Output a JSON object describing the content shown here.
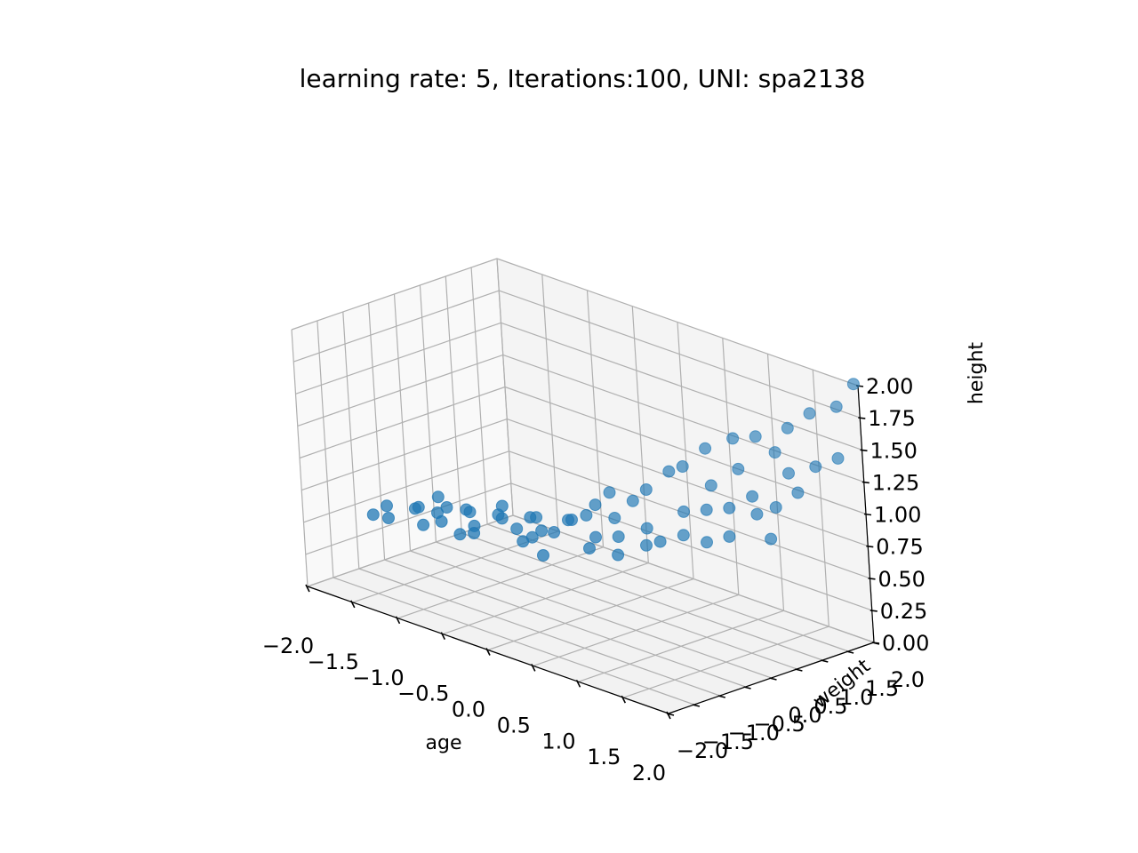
{
  "chart_data": {
    "type": "scatter",
    "projection": "3d",
    "title": "learning rate: 5, Iterations:100, UNI: spa2138",
    "xlabel": "age",
    "ylabel": "weight",
    "zlabel": "height",
    "xlim": [
      -2.0,
      2.0
    ],
    "ylim": [
      -2.0,
      2.0
    ],
    "zlim": [
      0.0,
      2.0
    ],
    "grid": true,
    "marker_color": "#1f77b4",
    "x_ticks": [
      "−2.0",
      "−1.5",
      "−1.0",
      "−0.5",
      "0.0",
      "0.5",
      "1.0",
      "1.5",
      "2.0"
    ],
    "y_ticks": [
      "−2.0",
      "−1.5",
      "−1.0",
      "−0.5",
      "0.0",
      "0.5",
      "1.0",
      "1.5",
      "2.0"
    ],
    "z_ticks": [
      "0.00",
      "0.25",
      "0.50",
      "0.75",
      "1.00",
      "1.25",
      "1.50",
      "1.75",
      "2.00"
    ],
    "points": [
      {
        "x": -1.8,
        "y": -1.0,
        "z": 0.47
      },
      {
        "x": -1.7,
        "y": -0.9,
        "z": 0.55
      },
      {
        "x": -1.6,
        "y": -1.05,
        "z": 0.5
      },
      {
        "x": -1.5,
        "y": -0.7,
        "z": 0.55
      },
      {
        "x": -1.4,
        "y": -0.8,
        "z": 0.6
      },
      {
        "x": -1.35,
        "y": -0.5,
        "z": 0.65
      },
      {
        "x": -1.3,
        "y": -0.9,
        "z": 0.5
      },
      {
        "x": -1.25,
        "y": -0.7,
        "z": 0.58
      },
      {
        "x": -1.2,
        "y": -0.6,
        "z": 0.62
      },
      {
        "x": -1.15,
        "y": -0.8,
        "z": 0.55
      },
      {
        "x": -1.1,
        "y": -0.4,
        "z": 0.6
      },
      {
        "x": -1.0,
        "y": -0.5,
        "z": 0.62
      },
      {
        "x": -0.95,
        "y": -0.8,
        "z": 0.5
      },
      {
        "x": -0.9,
        "y": -0.6,
        "z": 0.55
      },
      {
        "x": -0.85,
        "y": -0.7,
        "z": 0.52
      },
      {
        "x": -0.8,
        "y": -0.3,
        "z": 0.62
      },
      {
        "x": -0.75,
        "y": -0.3,
        "z": 0.7
      },
      {
        "x": -0.7,
        "y": -0.4,
        "z": 0.63
      },
      {
        "x": -0.6,
        "y": -0.3,
        "z": 0.56
      },
      {
        "x": -0.55,
        "y": 0.0,
        "z": 0.62
      },
      {
        "x": -0.5,
        "y": -0.2,
        "z": 0.66
      },
      {
        "x": -0.45,
        "y": -0.45,
        "z": 0.52
      },
      {
        "x": -0.4,
        "y": -0.35,
        "z": 0.55
      },
      {
        "x": -0.35,
        "y": -0.25,
        "z": 0.6
      },
      {
        "x": -0.3,
        "y": -0.1,
        "z": 0.58
      },
      {
        "x": -0.25,
        "y": 0.1,
        "z": 0.66
      },
      {
        "x": -0.2,
        "y": -0.5,
        "z": 0.48
      },
      {
        "x": -0.15,
        "y": 0.0,
        "z": 0.7
      },
      {
        "x": -0.1,
        "y": 0.2,
        "z": 0.72
      },
      {
        "x": -0.05,
        "y": 0.3,
        "z": 0.8
      },
      {
        "x": 0.0,
        "y": 0.5,
        "z": 0.88
      },
      {
        "x": 0.05,
        "y": 0.1,
        "z": 0.6
      },
      {
        "x": 0.1,
        "y": 0.4,
        "z": 0.72
      },
      {
        "x": 0.15,
        "y": -0.2,
        "z": 0.58
      },
      {
        "x": 0.2,
        "y": 0.6,
        "z": 0.85
      },
      {
        "x": 0.25,
        "y": 0.2,
        "z": 0.64
      },
      {
        "x": 0.3,
        "y": 0.7,
        "z": 0.95
      },
      {
        "x": 0.35,
        "y": 0.0,
        "z": 0.55
      },
      {
        "x": 0.4,
        "y": 0.5,
        "z": 0.7
      },
      {
        "x": 0.45,
        "y": 0.9,
        "z": 1.1
      },
      {
        "x": 0.5,
        "y": 0.3,
        "z": 0.62
      },
      {
        "x": 0.55,
        "y": 1.0,
        "z": 1.15
      },
      {
        "x": 0.6,
        "y": 0.4,
        "z": 0.66
      },
      {
        "x": 0.65,
        "y": 0.8,
        "z": 0.85
      },
      {
        "x": 0.7,
        "y": 1.2,
        "z": 1.3
      },
      {
        "x": 0.75,
        "y": 0.6,
        "z": 0.72
      },
      {
        "x": 0.8,
        "y": 1.1,
        "z": 1.05
      },
      {
        "x": 0.85,
        "y": 0.9,
        "z": 0.9
      },
      {
        "x": 0.9,
        "y": 1.4,
        "z": 1.4
      },
      {
        "x": 0.95,
        "y": 0.7,
        "z": 0.7
      },
      {
        "x": 1.0,
        "y": 1.3,
        "z": 1.2
      },
      {
        "x": 1.05,
        "y": 1.0,
        "z": 0.95
      },
      {
        "x": 1.1,
        "y": 1.5,
        "z": 1.45
      },
      {
        "x": 1.15,
        "y": 0.8,
        "z": 0.78
      },
      {
        "x": 1.2,
        "y": 1.2,
        "z": 1.05
      },
      {
        "x": 1.25,
        "y": 1.6,
        "z": 1.35
      },
      {
        "x": 1.3,
        "y": 1.1,
        "z": 0.95
      },
      {
        "x": 1.35,
        "y": 1.7,
        "z": 1.55
      },
      {
        "x": 1.4,
        "y": 1.3,
        "z": 1.0
      },
      {
        "x": 1.45,
        "y": 1.5,
        "z": 1.25
      },
      {
        "x": 1.5,
        "y": 1.0,
        "z": 0.82
      },
      {
        "x": 1.55,
        "y": 1.8,
        "z": 1.7
      },
      {
        "x": 1.6,
        "y": 1.4,
        "z": 1.15
      },
      {
        "x": 1.7,
        "y": 1.6,
        "z": 1.35
      },
      {
        "x": 1.8,
        "y": 1.9,
        "z": 1.8
      },
      {
        "x": 1.9,
        "y": 1.7,
        "z": 1.45
      },
      {
        "x": 1.95,
        "y": 2.0,
        "z": 2.0
      }
    ]
  }
}
